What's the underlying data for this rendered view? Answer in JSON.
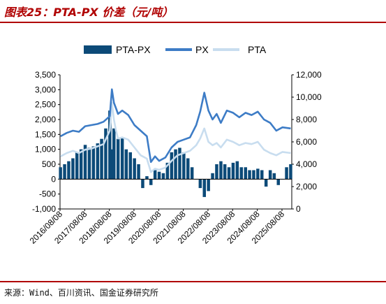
{
  "header": {
    "title": "图表25：PTA-PX 价差（元/吨）"
  },
  "footer": {
    "source": "来源：Wind、百川资讯、国金证券研究所"
  },
  "colors": {
    "pta_px": "#0c4a78",
    "px": "#3d7cc6",
    "pta": "#c8ddef",
    "accent": "#b00000"
  },
  "chart_data": {
    "type": "bar+line",
    "legend_position": "top",
    "legend": [
      "PTA-PX",
      "PX",
      "PTA"
    ],
    "x_tick_labels": [
      "2016/08/08",
      "2017/08/08",
      "2018/08/08",
      "2019/08/08",
      "2020/08/08",
      "2021/08/08",
      "2022/08/08",
      "2023/08/08",
      "2024/08/08",
      "2025/08/08"
    ],
    "x_range": [
      "2016-08-08",
      "2025-12-31"
    ],
    "y_left": {
      "range": [
        -1000,
        3500
      ],
      "ticks": [
        "-1,000",
        "-500",
        "0",
        "500",
        "1,000",
        "1,500",
        "2,000",
        "2,500",
        "3,000",
        "3,500"
      ]
    },
    "y_right": {
      "range": [
        0,
        12000
      ],
      "ticks": [
        "0",
        "2,000",
        "4,000",
        "6,000",
        "8,000",
        "10,000",
        "12,000"
      ]
    },
    "series": [
      {
        "name": "PTA-PX",
        "axis": "left",
        "type": "bar",
        "x": [
          "2016-08",
          "2016-10",
          "2016-12",
          "2017-02",
          "2017-04",
          "2017-06",
          "2017-08",
          "2017-10",
          "2017-12",
          "2018-02",
          "2018-04",
          "2018-06",
          "2018-08",
          "2018-09",
          "2018-10",
          "2018-12",
          "2019-02",
          "2019-04",
          "2019-06",
          "2019-08",
          "2019-10",
          "2019-12",
          "2020-02",
          "2020-04",
          "2020-06",
          "2020-08",
          "2020-10",
          "2020-12",
          "2021-02",
          "2021-04",
          "2021-06",
          "2021-08",
          "2021-10",
          "2021-12",
          "2022-02",
          "2022-04",
          "2022-06",
          "2022-08",
          "2022-10",
          "2022-12",
          "2023-02",
          "2023-04",
          "2023-06",
          "2023-08",
          "2023-10",
          "2023-12",
          "2024-02",
          "2024-04",
          "2024-06",
          "2024-08",
          "2024-10",
          "2024-12",
          "2025-02",
          "2025-04",
          "2025-06",
          "2025-08",
          "2025-10",
          "2025-12"
        ],
        "values": [
          400,
          500,
          600,
          700,
          900,
          1000,
          1150,
          1050,
          1100,
          1200,
          1350,
          1700,
          2300,
          1000,
          1700,
          1350,
          1400,
          1000,
          900,
          700,
          500,
          -300,
          100,
          -200,
          300,
          250,
          200,
          550,
          900,
          1000,
          1050,
          900,
          700,
          400,
          0,
          -300,
          -600,
          -400,
          200,
          500,
          600,
          500,
          400,
          550,
          600,
          400,
          400,
          300,
          300,
          350,
          300,
          -250,
          300,
          200,
          -200,
          0,
          400,
          500
        ]
      },
      {
        "name": "PX",
        "axis": "right",
        "type": "line",
        "x": [
          "2016-08",
          "2016-11",
          "2017-02",
          "2017-05",
          "2017-08",
          "2017-11",
          "2018-02",
          "2018-05",
          "2018-08",
          "2018-09",
          "2018-10",
          "2018-11",
          "2018-12",
          "2019-02",
          "2019-05",
          "2019-08",
          "2019-11",
          "2020-02",
          "2020-04",
          "2020-06",
          "2020-08",
          "2020-11",
          "2021-02",
          "2021-05",
          "2021-08",
          "2021-11",
          "2022-02",
          "2022-04",
          "2022-06",
          "2022-08",
          "2022-10",
          "2022-12",
          "2023-02",
          "2023-05",
          "2023-08",
          "2023-11",
          "2024-02",
          "2024-05",
          "2024-08",
          "2024-11",
          "2025-02",
          "2025-05",
          "2025-08",
          "2025-12"
        ],
        "values": [
          6500,
          6800,
          7000,
          6900,
          7400,
          7500,
          7600,
          7800,
          8300,
          10700,
          9500,
          9000,
          8500,
          8800,
          8400,
          7500,
          7000,
          6500,
          4200,
          4700,
          4300,
          4600,
          5500,
          6000,
          6200,
          6400,
          7500,
          8700,
          10400,
          8800,
          8000,
          8500,
          7700,
          8800,
          8600,
          8200,
          8600,
          8400,
          8700,
          8000,
          7700,
          7000,
          7300,
          7200
        ]
      },
      {
        "name": "PTA",
        "axis": "right",
        "type": "line",
        "x": [
          "2016-08",
          "2016-11",
          "2017-02",
          "2017-05",
          "2017-08",
          "2017-11",
          "2018-02",
          "2018-05",
          "2018-08",
          "2018-09",
          "2018-10",
          "2018-11",
          "2018-12",
          "2019-02",
          "2019-05",
          "2019-08",
          "2019-11",
          "2020-02",
          "2020-04",
          "2020-06",
          "2020-08",
          "2020-11",
          "2021-02",
          "2021-05",
          "2021-08",
          "2021-11",
          "2022-02",
          "2022-04",
          "2022-06",
          "2022-08",
          "2022-10",
          "2022-12",
          "2023-02",
          "2023-05",
          "2023-08",
          "2023-11",
          "2024-02",
          "2024-05",
          "2024-08",
          "2024-11",
          "2025-02",
          "2025-05",
          "2025-08",
          "2025-12"
        ],
        "values": [
          4700,
          5000,
          5200,
          5000,
          5300,
          5400,
          5600,
          5800,
          7000,
          9500,
          8000,
          7000,
          6300,
          6400,
          6200,
          5500,
          4800,
          4500,
          3300,
          3600,
          3500,
          3700,
          4300,
          4800,
          5000,
          5200,
          5700,
          6300,
          7200,
          6000,
          5700,
          5900,
          5500,
          6200,
          6000,
          5700,
          5900,
          5800,
          6000,
          5300,
          5000,
          4800,
          5100,
          5000
        ]
      }
    ]
  }
}
